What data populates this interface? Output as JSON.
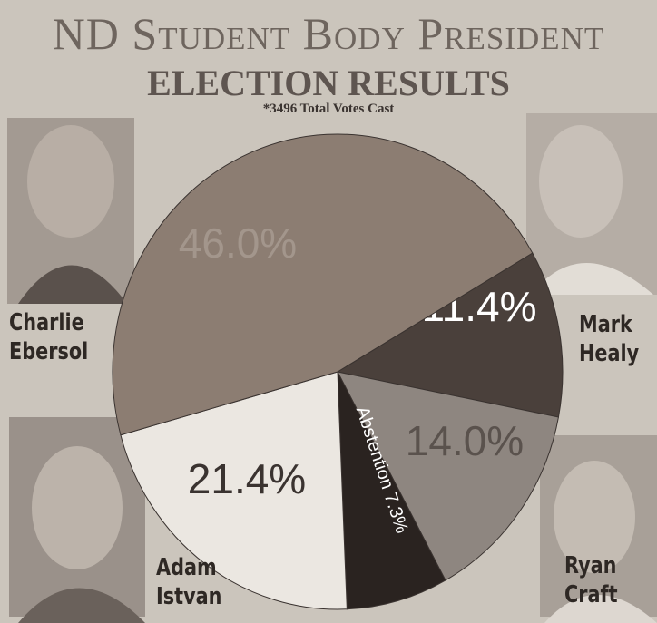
{
  "chart_data": {
    "type": "pie",
    "title": "ND Student Body President",
    "subtitle": "ELECTION RESULTS",
    "note": "*3496 Total Votes Cast",
    "categories": [
      "Mark Healy",
      "Ryan Craft",
      "Abstention",
      "Adam Istvan",
      "Charlie Ebersol"
    ],
    "values": [
      11.4,
      14.0,
      7.3,
      21.4,
      46.0
    ],
    "value_labels": [
      "11.4%",
      "14.0%",
      "7.3%",
      "21.4%",
      "46.0%"
    ],
    "colors": [
      "#4a403b",
      "#8e8680",
      "#2a2320",
      "#ebe7e1",
      "#8c7d72"
    ]
  }
}
